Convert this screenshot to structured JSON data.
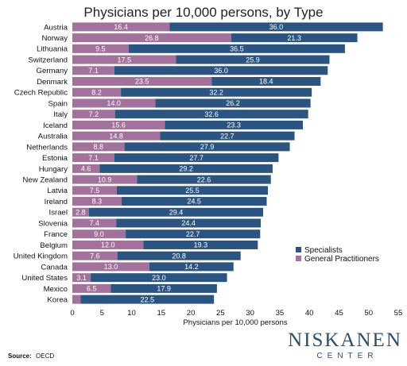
{
  "chart_data": {
    "type": "bar",
    "orientation": "horizontal",
    "stacked": true,
    "title": "Physicians per 10,000 persons, by Type",
    "xlabel": "Physicians per 10,000 persons",
    "ylabel": "",
    "xlim": [
      0,
      55
    ],
    "xticks": [
      0,
      5,
      10,
      15,
      20,
      25,
      30,
      35,
      40,
      45,
      50,
      55
    ],
    "grid": false,
    "legend_position": "right",
    "categories": [
      "Austria",
      "Norway",
      "Lithuania",
      "Switzerland",
      "Germany",
      "Denmark",
      "Czech Republic",
      "Spain",
      "Italy",
      "Iceland",
      "Australia",
      "Netherlands",
      "Estonia",
      "Hungary",
      "New Zealand",
      "Latvia",
      "Ireland",
      "Israel",
      "Slovenia",
      "France",
      "Belgium",
      "United Kingdom",
      "Canada",
      "United States",
      "Mexico",
      "Korea"
    ],
    "series": [
      {
        "name": "General Practitioners",
        "color": "#a2729c",
        "values": [
          16.4,
          26.8,
          9.5,
          17.5,
          7.1,
          23.5,
          8.2,
          14.0,
          7.2,
          15.6,
          14.8,
          8.8,
          7.1,
          4.6,
          10.9,
          7.5,
          8.3,
          2.8,
          7.4,
          9.0,
          12.0,
          7.6,
          13.0,
          3.1,
          6.5,
          1.4
        ],
        "labels": [
          "16.4",
          "26.8",
          "9.5",
          "17.5",
          "7.1",
          "23.5",
          "8.2",
          "14.0",
          "7.2",
          "15.6",
          "14.8",
          "8.8",
          "7.1",
          "4.6",
          "10.9",
          "7.5",
          "8.3",
          "2.8",
          "7.4",
          "9.0",
          "12.0",
          "7.6",
          "13.0",
          "3.1",
          "6.5",
          ""
        ]
      },
      {
        "name": "Specialists",
        "color": "#2c5480",
        "values": [
          36.0,
          21.3,
          36.5,
          25.9,
          36.0,
          18.4,
          32.2,
          26.2,
          32.6,
          23.3,
          22.7,
          27.9,
          27.7,
          29.2,
          22.6,
          25.5,
          24.5,
          29.4,
          24.4,
          22.7,
          19.3,
          20.8,
          14.2,
          23.0,
          17.9,
          22.5
        ],
        "labels": [
          "36.0",
          "21.3",
          "36.5",
          "25.9",
          "36.0",
          "18.4",
          "32.2",
          "26.2",
          "32.6",
          "23.3",
          "22.7",
          "27.9",
          "27.7",
          "29.2",
          "22.6",
          "25.5",
          "24.5",
          "29.4",
          "24.4",
          "22.7",
          "19.3",
          "20.8",
          "14.2",
          "23.0",
          "17.9",
          "22.5"
        ]
      }
    ],
    "legend": [
      {
        "name": "Specialists",
        "color": "#2c5480"
      },
      {
        "name": "General Practitioners",
        "color": "#a2729c"
      }
    ]
  },
  "source": {
    "label": "Source:",
    "text": "OECD"
  },
  "logo": {
    "line1": "NISKANEN",
    "line2": "CENTER"
  }
}
